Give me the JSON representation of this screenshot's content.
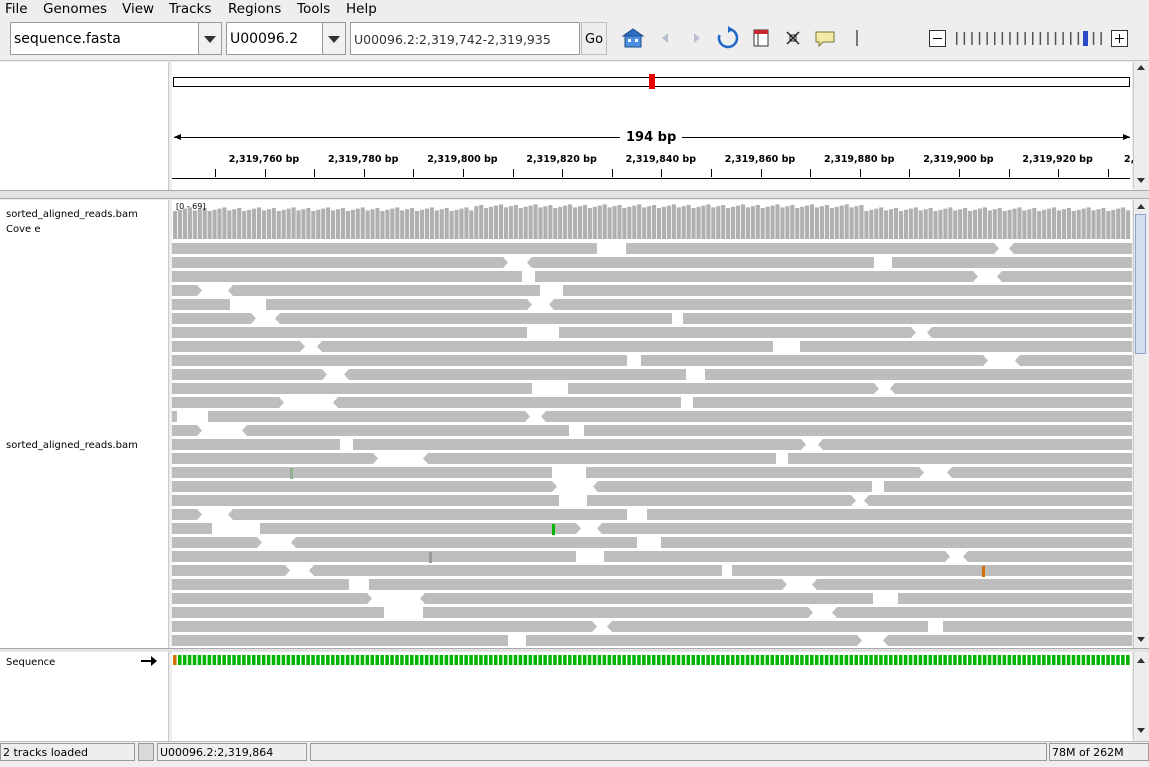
{
  "menu": [
    "File",
    "Genomes",
    "View",
    "Tracks",
    "Regions",
    "Tools",
    "Help"
  ],
  "toolbar": {
    "genome": "sequence.fasta",
    "chromosome": "U00096.2",
    "locus": "U00096.2:2,319,742-2,319,935",
    "go_label": "Go"
  },
  "ruler": {
    "span_label": "194 bp",
    "ticks": [
      "2,319,760 bp",
      "2,319,780 bp",
      "2,319,800 bp",
      "2,319,820 bp",
      "2,319,840 bp",
      "2,319,860 bp",
      "2,319,880 bp",
      "2,319,900 bp",
      "2,319,920 bp",
      "2,"
    ]
  },
  "tracks": {
    "coverage_name": "sorted_aligned_reads.bam Cove e",
    "coverage_range": "[0 - 69]",
    "alignment_name": "sorted_aligned_reads.bam",
    "sequence_name": "Sequence"
  },
  "status": {
    "message": "2 tracks loaded",
    "position": "U00096.2:2,319,864",
    "memory": "78M of 262M"
  },
  "colors": {
    "read": "#bdbdbd",
    "base_A": "#00b400",
    "base_C": "#0000e6",
    "base_G": "#d17105",
    "base_T": "#e60000",
    "selection": "#e60000"
  }
}
